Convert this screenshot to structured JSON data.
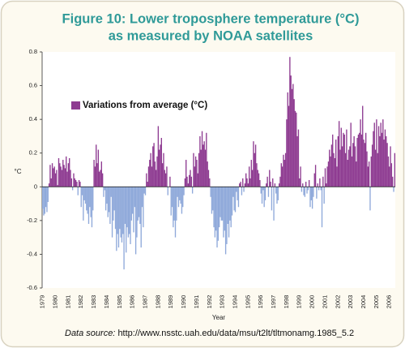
{
  "chart_data": {
    "type": "bar",
    "title": [
      "Figure 10: Lower troposphere temperature (°C)",
      "as measured by NOAA satellites"
    ],
    "y_label": "°C",
    "x_label": "Year",
    "source_label": "Data source:",
    "source_url": "http://www.nsstc.uah.edu/data/msu/t2lt/tltmonamg.1985_5.2",
    "ylim": [
      -0.6,
      0.8
    ],
    "yticks": [
      0.8,
      0.6,
      0.4,
      0.2,
      0,
      -0.2,
      -0.4,
      -0.6
    ],
    "legend": "top-left",
    "categories": [
      "1979",
      null,
      null,
      null,
      null,
      null,
      null,
      null,
      null,
      null,
      null,
      null,
      "1980",
      null,
      null,
      null,
      null,
      null,
      null,
      null,
      null,
      null,
      null,
      null,
      "1981",
      null,
      null,
      null,
      null,
      null,
      null,
      null,
      null,
      null,
      null,
      null,
      "1982",
      null,
      null,
      null,
      null,
      null,
      null,
      null,
      null,
      null,
      null,
      null,
      "1983",
      null,
      null,
      null,
      null,
      null,
      null,
      null,
      null,
      null,
      null,
      null,
      "1984",
      null,
      null,
      null,
      null,
      null,
      null,
      null,
      null,
      null,
      null,
      null,
      "1985",
      null,
      null,
      null,
      null,
      null,
      null,
      null,
      null,
      null,
      null,
      null,
      "1986",
      null,
      null,
      null,
      null,
      null,
      null,
      null,
      null,
      null,
      null,
      null,
      "1987",
      null,
      null,
      null,
      null,
      null,
      null,
      null,
      null,
      null,
      null,
      null,
      "1988",
      null,
      null,
      null,
      null,
      null,
      null,
      null,
      null,
      null,
      null,
      null,
      "1989",
      null,
      null,
      null,
      null,
      null,
      null,
      null,
      null,
      null,
      null,
      null,
      "1990",
      null,
      null,
      null,
      null,
      null,
      null,
      null,
      null,
      null,
      null,
      null,
      "1991",
      null,
      null,
      null,
      null,
      null,
      null,
      null,
      null,
      null,
      null,
      null,
      "1992",
      null,
      null,
      null,
      null,
      null,
      null,
      null,
      null,
      null,
      null,
      null,
      "1993",
      null,
      null,
      null,
      null,
      null,
      null,
      null,
      null,
      null,
      null,
      null,
      "1994",
      null,
      null,
      null,
      null,
      null,
      null,
      null,
      null,
      null,
      null,
      null,
      "1995",
      null,
      null,
      null,
      null,
      null,
      null,
      null,
      null,
      null,
      null,
      null,
      "1996",
      null,
      null,
      null,
      null,
      null,
      null,
      null,
      null,
      null,
      null,
      null,
      "1997",
      null,
      null,
      null,
      null,
      null,
      null,
      null,
      null,
      null,
      null,
      null,
      "1998",
      null,
      null,
      null,
      null,
      null,
      null,
      null,
      null,
      null,
      null,
      null,
      "1999",
      null,
      null,
      null,
      null,
      null,
      null,
      null,
      null,
      null,
      null,
      null,
      "2000",
      null,
      null,
      null,
      null,
      null,
      null,
      null,
      null,
      null,
      null,
      null,
      "2001",
      null,
      null,
      null,
      null,
      null,
      null,
      null,
      null,
      null,
      null,
      null,
      "2002",
      null,
      null,
      null,
      null,
      null,
      null,
      null,
      null,
      null,
      null,
      null,
      "2003",
      null,
      null,
      null,
      null,
      null,
      null,
      null,
      null,
      null,
      null,
      null,
      "2004",
      null,
      null,
      null,
      null,
      null,
      null,
      null,
      null,
      null,
      null,
      null,
      "2005",
      null,
      null,
      null,
      null,
      null,
      null,
      null,
      null,
      null,
      null,
      null,
      "2006",
      null,
      null,
      null,
      null,
      null
    ],
    "series": [
      {
        "name": "Variations from average (°C)",
        "color": "#8e3b91",
        "negative_color": "#8fa9da",
        "values": [
          -0.13,
          -0.17,
          -0.16,
          -0.12,
          -0.15,
          -0.09,
          0.02,
          0.13,
          0.05,
          0.14,
          0.11,
          0.12,
          0.08,
          0.1,
          0.01,
          0.17,
          0.14,
          0.12,
          0.1,
          0.16,
          0.13,
          0.11,
          0.18,
          0.09,
          0.14,
          0.17,
          0.1,
          0.05,
          -0.02,
          0.08,
          0.05,
          0.04,
          0.03,
          -0.05,
          0.04,
          0.03,
          -0.12,
          -0.05,
          -0.2,
          -0.08,
          -0.1,
          -0.14,
          -0.16,
          -0.22,
          -0.12,
          -0.18,
          -0.24,
          -0.14,
          0.16,
          0.12,
          0.25,
          0.14,
          0.22,
          0.09,
          0.1,
          0.15,
          0.08,
          -0.06,
          -0.02,
          -0.14,
          -0.1,
          -0.18,
          -0.15,
          -0.22,
          -0.06,
          -0.3,
          -0.2,
          -0.14,
          -0.25,
          -0.38,
          -0.28,
          -0.36,
          -0.25,
          -0.3,
          -0.33,
          -0.28,
          -0.49,
          -0.22,
          -0.39,
          -0.24,
          -0.3,
          -0.28,
          -0.34,
          -0.2,
          -0.16,
          -0.27,
          -0.12,
          -0.4,
          -0.3,
          -0.2,
          -0.18,
          -0.22,
          -0.36,
          -0.12,
          -0.24,
          -0.04,
          -0.05,
          0.08,
          0.03,
          0.12,
          0.16,
          0.2,
          0.12,
          0.24,
          0.26,
          0.15,
          0.1,
          0.18,
          0.36,
          0.22,
          0.25,
          0.29,
          0.14,
          0.2,
          0.1,
          0.08,
          0.12,
          -0.05,
          0.0,
          0.06,
          -0.17,
          -0.12,
          -0.24,
          -0.2,
          -0.3,
          -0.2,
          -0.06,
          -0.12,
          -0.08,
          -0.1,
          -0.16,
          -0.12,
          -0.05,
          0.05,
          0.16,
          0.06,
          0.02,
          0.07,
          0.1,
          0.06,
          -0.04,
          0.2,
          0.12,
          0.18,
          0.16,
          0.08,
          0.2,
          0.3,
          0.22,
          0.33,
          0.25,
          0.27,
          0.22,
          0.32,
          0.15,
          0.1,
          0.05,
          -0.06,
          -0.16,
          -0.14,
          -0.24,
          -0.3,
          -0.26,
          -0.36,
          -0.32,
          -0.24,
          -0.18,
          -0.2,
          -0.2,
          -0.3,
          -0.26,
          -0.4,
          -0.34,
          -0.22,
          -0.3,
          -0.2,
          -0.24,
          -0.17,
          -0.06,
          -0.14,
          -0.15,
          -0.03,
          -0.08,
          -0.12,
          0.02,
          0.03,
          -0.05,
          0.05,
          -0.03,
          0.02,
          0.08,
          0.05,
          0.02,
          0.12,
          0.05,
          0.16,
          0.1,
          0.27,
          0.2,
          0.25,
          0.14,
          0.1,
          0.08,
          0.04,
          -0.04,
          -0.1,
          -0.02,
          -0.12,
          -0.08,
          0.02,
          0.06,
          -0.06,
          0.1,
          0.03,
          -0.14,
          0.05,
          -0.2,
          0.02,
          -0.04,
          -0.1,
          -0.08,
          0.02,
          0.06,
          0.14,
          0.12,
          0.19,
          0.16,
          0.2,
          0.4,
          0.56,
          0.48,
          0.77,
          0.66,
          0.58,
          0.61,
          0.52,
          0.45,
          0.44,
          0.3,
          0.34,
          0.05,
          0.12,
          -0.03,
          0.02,
          -0.05,
          -0.06,
          0.03,
          -0.04,
          -0.02,
          0.04,
          -0.12,
          -0.08,
          -0.13,
          -0.06,
          0.08,
          0.13,
          -0.07,
          0.02,
          -0.02,
          0.05,
          -0.02,
          -0.24,
          0.06,
          -0.1,
          0.11,
          0.02,
          0.12,
          0.15,
          0.22,
          0.18,
          0.25,
          0.31,
          0.2,
          0.17,
          0.28,
          0.12,
          0.3,
          0.39,
          0.22,
          0.35,
          0.24,
          0.32,
          0.31,
          0.2,
          0.34,
          0.16,
          0.22,
          0.24,
          0.38,
          0.18,
          0.26,
          0.3,
          0.24,
          0.15,
          0.29,
          0.31,
          0.32,
          0.4,
          0.31,
          0.48,
          0.28,
          0.26,
          0.32,
          0.21,
          0.12,
          0.15,
          -0.14,
          0.18,
          0.25,
          0.33,
          0.38,
          0.22,
          0.4,
          0.2,
          0.36,
          0.3,
          0.38,
          0.32,
          0.4,
          0.28,
          0.34,
          0.3,
          0.26,
          0.18,
          0.12,
          0.24,
          0.14,
          0.06,
          -0.03,
          0.2
        ]
      }
    ]
  }
}
